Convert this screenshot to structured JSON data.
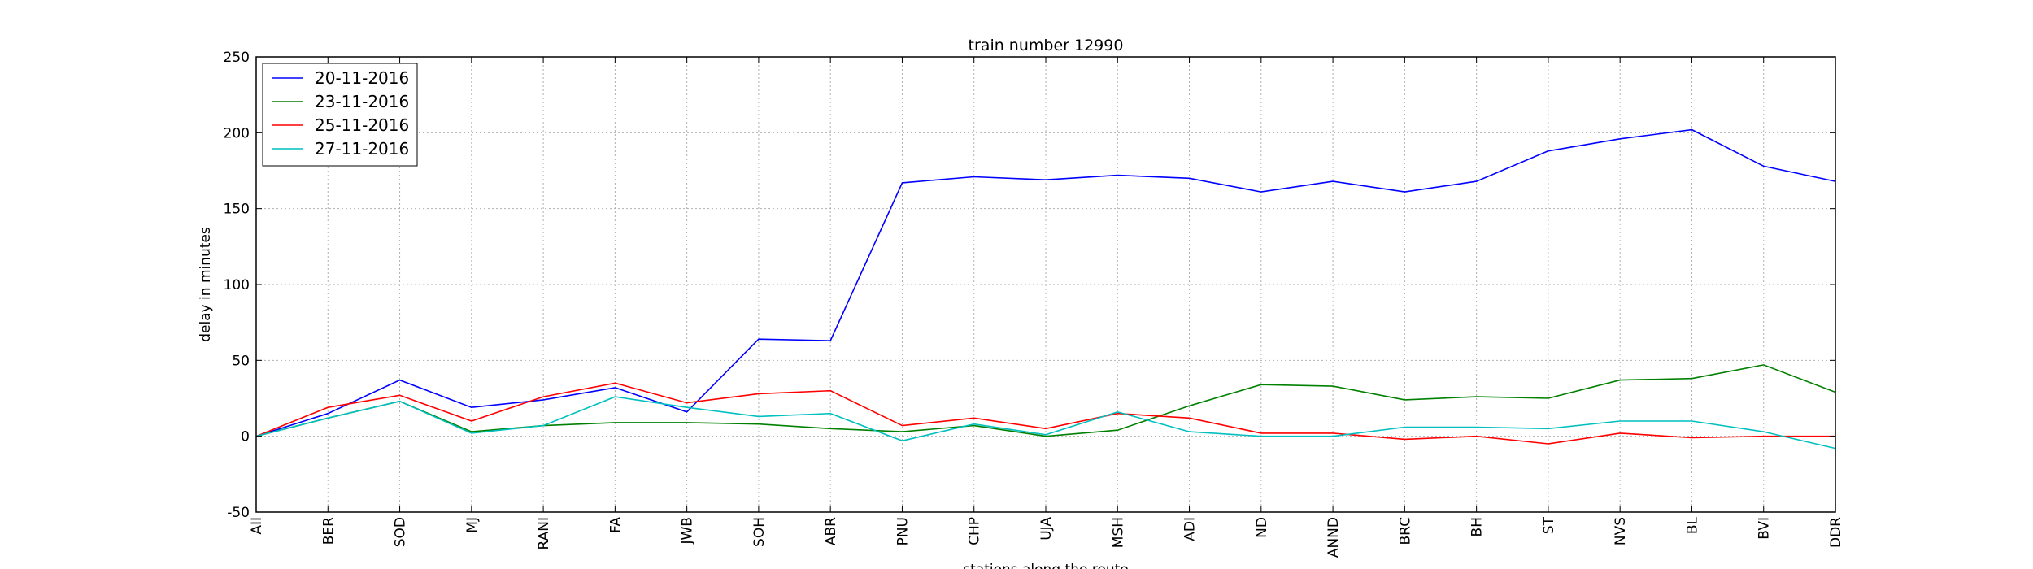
{
  "chart_data": {
    "type": "line",
    "title": "train number 12990",
    "xlabel": "stations along the route",
    "ylabel": "delay in minutes",
    "ylim": [
      -50,
      250
    ],
    "yticks": [
      -50,
      0,
      50,
      100,
      150,
      200,
      250
    ],
    "grid": true,
    "legend_position": "top-left",
    "categories": [
      "AII",
      "BER",
      "SOD",
      "MJ",
      "RANI",
      "FA",
      "JWB",
      "SOH",
      "ABR",
      "PNU",
      "CHP",
      "UJA",
      "MSH",
      "ADI",
      "ND",
      "ANND",
      "BRC",
      "BH",
      "ST",
      "NVS",
      "BL",
      "BVI",
      "DDR"
    ],
    "series": [
      {
        "name": "20-11-2016",
        "color": "#0000ff",
        "values": [
          0,
          15,
          37,
          19,
          24,
          32,
          16,
          64,
          63,
          167,
          171,
          169,
          172,
          170,
          161,
          168,
          161,
          168,
          188,
          196,
          202,
          178,
          168
        ]
      },
      {
        "name": "23-11-2016",
        "color": "#008000",
        "values": [
          0,
          12,
          23,
          3,
          7,
          9,
          9,
          8,
          5,
          3,
          7,
          0,
          4,
          20,
          34,
          33,
          24,
          26,
          25,
          37,
          38,
          47,
          29
        ]
      },
      {
        "name": "25-11-2016",
        "color": "#ff0000",
        "values": [
          0,
          19,
          27,
          10,
          26,
          35,
          22,
          28,
          30,
          7,
          12,
          5,
          15,
          12,
          2,
          2,
          -2,
          0,
          -5,
          2,
          -1,
          0,
          0
        ]
      },
      {
        "name": "27-11-2016",
        "color": "#00bfbf",
        "values": [
          0,
          12,
          23,
          2,
          7,
          26,
          19,
          13,
          15,
          -3,
          8,
          1,
          16,
          3,
          0,
          0,
          6,
          6,
          5,
          10,
          10,
          3,
          -8
        ]
      }
    ]
  }
}
